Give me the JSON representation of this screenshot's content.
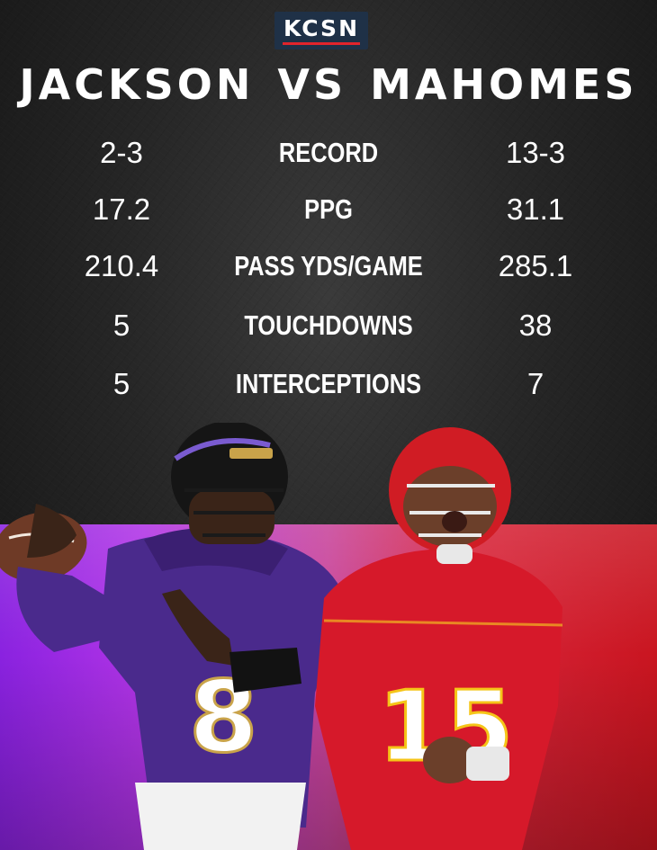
{
  "logo": {
    "text": "KCSN"
  },
  "title": {
    "left_name": "JACKSON",
    "vs": "VS",
    "right_name": "MAHOMES"
  },
  "stats": [
    {
      "left": "2-3",
      "label": "RECORD",
      "right": "13-3"
    },
    {
      "left": "17.2",
      "label": "PPG",
      "right": "31.1"
    },
    {
      "left": "210.4",
      "label": "PASS YDS/GAME",
      "right": "285.1"
    },
    {
      "left": "5",
      "label": "TOUCHDOWNS",
      "right": "38"
    },
    {
      "left": "5",
      "label": "INTERCEPTIONS",
      "right": "7"
    }
  ],
  "players": {
    "left": {
      "jersey_number": "8",
      "team_color": "#4a2a8c",
      "helmet_color": "#151515"
    },
    "right": {
      "jersey_number": "15",
      "team_color": "#d6192a",
      "helmet_color": "#d01c24"
    }
  }
}
